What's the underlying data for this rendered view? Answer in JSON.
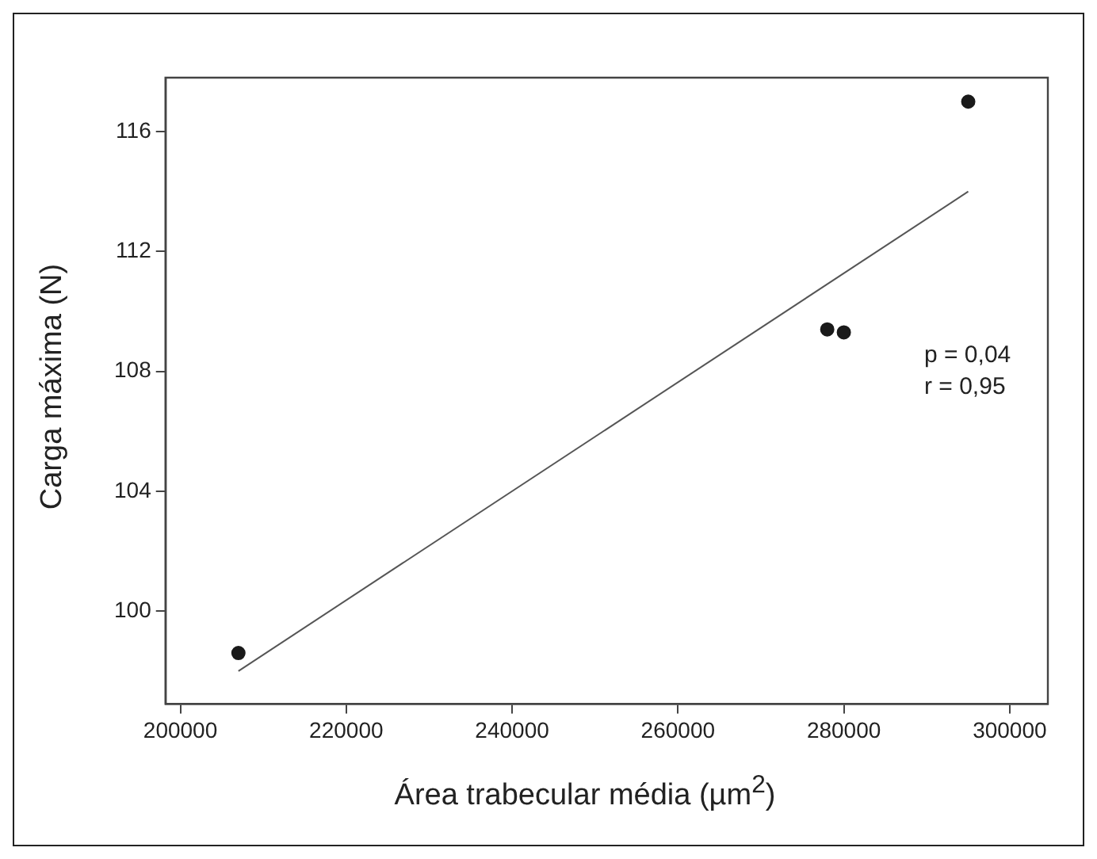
{
  "chart_data": {
    "type": "scatter",
    "xlabel": "Área trabecular média (µm$^{2}$)",
    "ylabel": "Carga máxima (N)",
    "xlim": [
      198200,
      304600
    ],
    "xticks": [
      200000,
      220000,
      240000,
      260000,
      280000,
      300000
    ],
    "ylim": [
      96.9,
      117.8
    ],
    "yticks": [
      100,
      104,
      108,
      112,
      116
    ],
    "grid": false,
    "legend": false,
    "marker": "circle",
    "annotations": [
      "p = 0,04",
      "r = 0,95"
    ],
    "series": [
      {
        "type": "scatter",
        "color": "#1a1a1a",
        "x": [
          207000,
          278000,
          280000,
          295000
        ],
        "values": [
          98.6,
          109.4,
          109.3,
          117.0
        ]
      },
      {
        "type": "line",
        "color": "#555555",
        "marker": "none",
        "line_style": "solid",
        "x": [
          207000,
          295000
        ],
        "values": [
          98.0,
          114.0
        ]
      }
    ]
  }
}
